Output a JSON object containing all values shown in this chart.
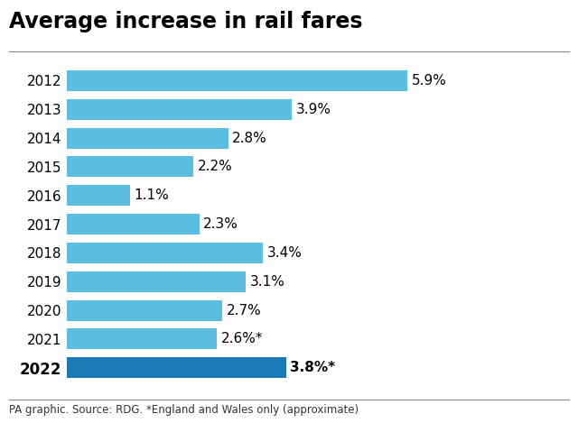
{
  "title": "Average increase in rail fares",
  "years": [
    "2012",
    "2013",
    "2014",
    "2015",
    "2016",
    "2017",
    "2018",
    "2019",
    "2020",
    "2021",
    "2022"
  ],
  "values": [
    5.9,
    3.9,
    2.8,
    2.2,
    1.1,
    2.3,
    3.4,
    3.1,
    2.7,
    2.6,
    3.8
  ],
  "labels": [
    "5.9%",
    "3.9%",
    "2.8%",
    "2.2%",
    "1.1%",
    "2.3%",
    "3.4%",
    "3.1%",
    "2.7%",
    "2.6%*",
    "3.8%*"
  ],
  "bar_color_normal": "#5bbde0",
  "bar_color_2022": "#1a7ab5",
  "footnote": "PA graphic. Source: RDG. *England and Wales only (approximate)",
  "xlim": [
    0,
    7.2
  ],
  "background_color": "#ffffff",
  "title_fontsize": 17,
  "label_fontsize": 11,
  "year_fontsize": 11,
  "footnote_fontsize": 8.5,
  "bar_height": 0.72
}
